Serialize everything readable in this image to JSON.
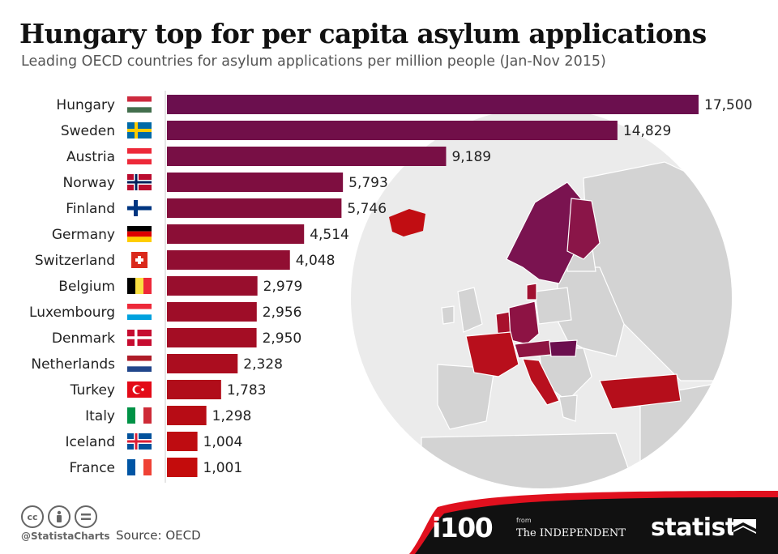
{
  "title": "Hungary top for per capita asylum applications",
  "subtitle": "Leading OECD countries for asylum applications per million people (Jan-Nov 2015)",
  "chart_data": {
    "type": "bar",
    "orientation": "horizontal",
    "title": "Hungary top for per capita asylum applications",
    "subtitle": "Leading OECD countries for asylum applications per million people (Jan-Nov 2015)",
    "categories": [
      "Hungary",
      "Sweden",
      "Austria",
      "Norway",
      "Finland",
      "Germany",
      "Switzerland",
      "Belgium",
      "Luxembourg",
      "Denmark",
      "Netherlands",
      "Turkey",
      "Italy",
      "Iceland",
      "France"
    ],
    "values": [
      17500,
      14829,
      9189,
      5793,
      5746,
      4514,
      4048,
      2979,
      2956,
      2950,
      2328,
      1783,
      1298,
      1004,
      1001
    ],
    "value_labels": [
      "17,500",
      "14,829",
      "9,189",
      "5,793",
      "5,746",
      "4,514",
      "4,048",
      "2,979",
      "2,956",
      "2,950",
      "2,328",
      "1,783",
      "1,298",
      "1,004",
      "1,001"
    ],
    "xlim": [
      0,
      17500
    ],
    "grid": false,
    "legend": "none",
    "color_scale": [
      "#6b0f4e",
      "#c40c0c"
    ]
  },
  "flags": [
    "hungary-flag-icon",
    "sweden-flag-icon",
    "austria-flag-icon",
    "norway-flag-icon",
    "finland-flag-icon",
    "germany-flag-icon",
    "switzerland-flag-icon",
    "belgium-flag-icon",
    "luxembourg-flag-icon",
    "denmark-flag-icon",
    "netherlands-flag-icon",
    "turkey-flag-icon",
    "italy-flag-icon",
    "iceland-flag-icon",
    "france-flag-icon"
  ],
  "footer": {
    "license_icons": [
      "cc",
      "by",
      "nd"
    ],
    "cc_text": "cc",
    "handle": "@StatistaCharts",
    "source": "Source: OECD",
    "logo_i100": "i100",
    "logo_from": "from",
    "logo_independent": "The INDEPENDENT",
    "logo_statista": "statista",
    "band_colors": [
      "#e0101e",
      "#111111"
    ]
  }
}
